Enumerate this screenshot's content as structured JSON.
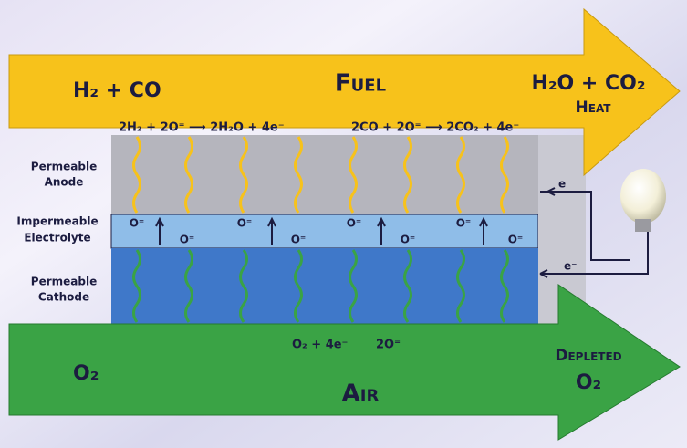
{
  "fuel_arrow": {
    "title": "Fuel",
    "inlet": "H₂ + CO",
    "outlet": "H₂O + CO₂",
    "outlet_extra": "Heat",
    "anode_reaction_1": "2H₂ + 2O⁼ ⟶ 2H₂O + 4e⁻",
    "anode_reaction_2": "2CO + 2O⁼ ⟶ 2CO₂ + 4e⁻"
  },
  "layers": {
    "anode": [
      "Permeable",
      "Anode"
    ],
    "electrolyte": [
      "Impermeable",
      "Electrolyte"
    ],
    "cathode": [
      "Permeable",
      "Cathode"
    ]
  },
  "ion_label": "O⁼",
  "circuit": {
    "electron_out": "e⁻",
    "electron_in": "e⁻"
  },
  "cathode_reaction": {
    "reactants": "O₂ + 4e⁻",
    "product": "2O⁼"
  },
  "air_arrow": {
    "title": "Air",
    "inlet": "O₂",
    "outlet": [
      "Depleted",
      "O₂"
    ]
  }
}
